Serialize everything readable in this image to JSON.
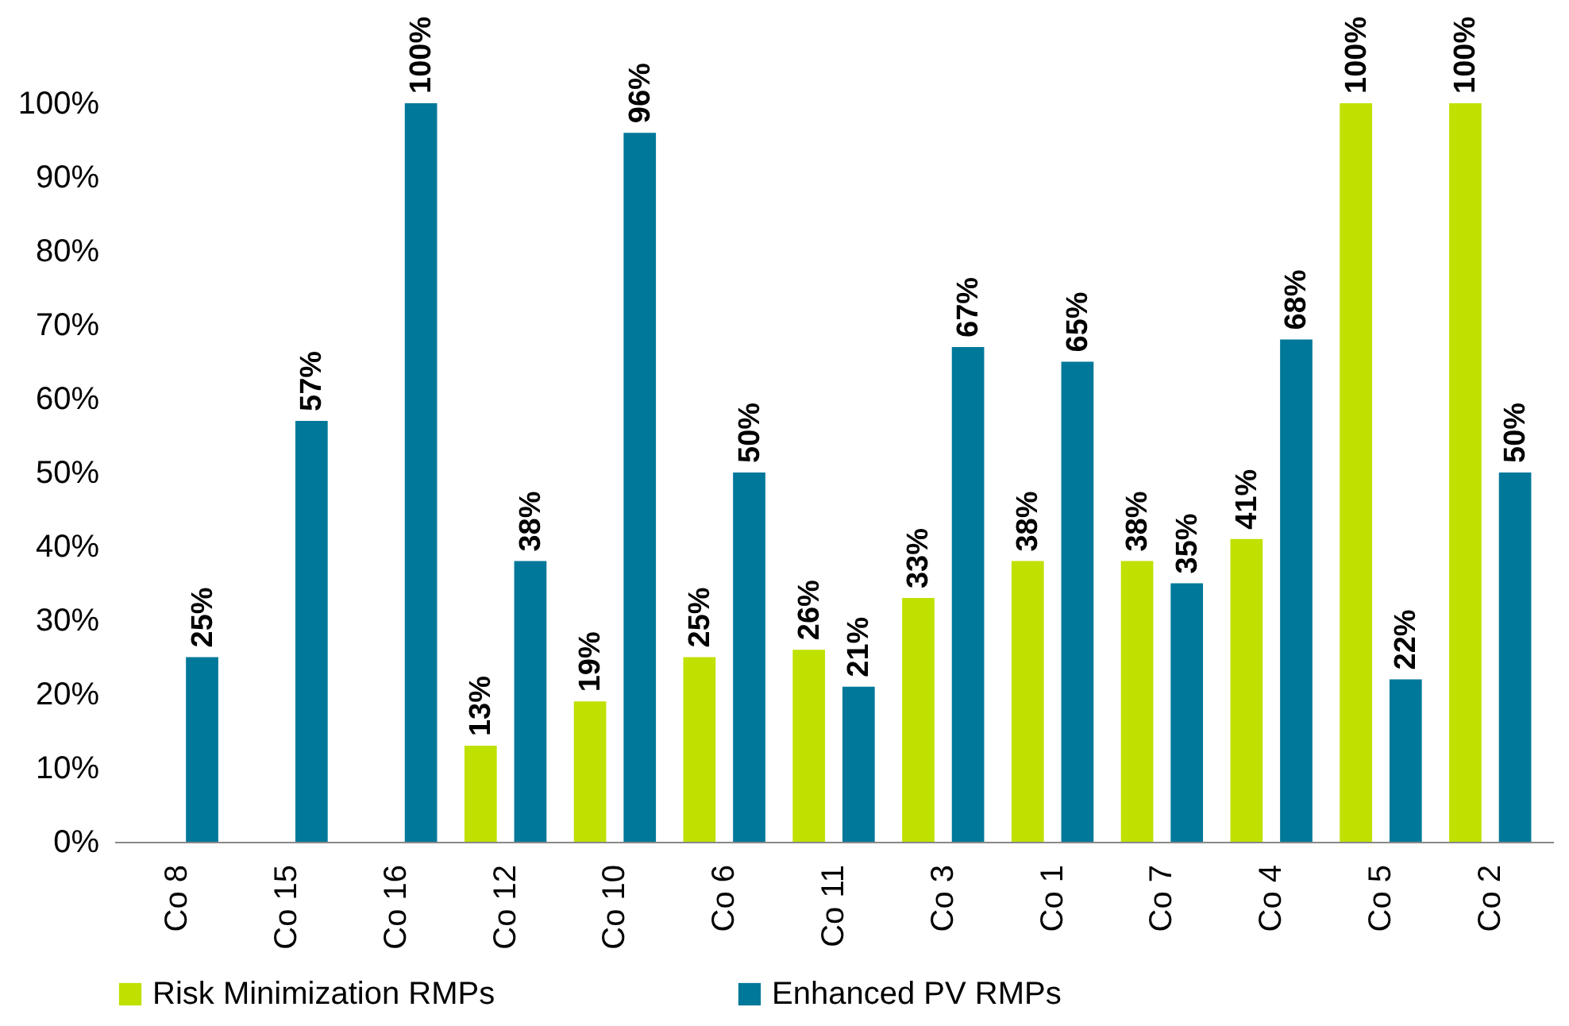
{
  "chart_data": {
    "type": "bar",
    "categories": [
      "Co 8",
      "Co 15",
      "Co 16",
      "Co 12",
      "Co 10",
      "Co 6",
      "Co 11",
      "Co 3",
      "Co 1",
      "Co 7",
      "Co 4",
      "Co 5",
      "Co 2"
    ],
    "series": [
      {
        "name": "Risk Minimization RMPs",
        "color": "#c0e000",
        "values": [
          null,
          null,
          null,
          13,
          19,
          25,
          26,
          33,
          38,
          38,
          41,
          100,
          100
        ],
        "value_labels": [
          null,
          null,
          null,
          "13%",
          "19%",
          "25%",
          "26%",
          "33%",
          "38%",
          "38%",
          "41%",
          "100%",
          "100%"
        ]
      },
      {
        "name": "Enhanced PV RMPs",
        "color": "#00789a",
        "values": [
          25,
          57,
          100,
          38,
          96,
          50,
          21,
          67,
          65,
          35,
          68,
          22,
          50
        ],
        "value_labels": [
          "25%",
          "57%",
          "100%",
          "38%",
          "96%",
          "50%",
          "21%",
          "67%",
          "65%",
          "35%",
          "68%",
          "22%",
          "50%"
        ]
      }
    ],
    "ylim": [
      0,
      100
    ],
    "yticks": [
      {
        "value": 0,
        "label": "0%"
      },
      {
        "value": 10,
        "label": "10%"
      },
      {
        "value": 20,
        "label": "20%"
      },
      {
        "value": 30,
        "label": "30%"
      },
      {
        "value": 40,
        "label": "40%"
      },
      {
        "value": 50,
        "label": "50%"
      },
      {
        "value": 60,
        "label": "60%"
      },
      {
        "value": 70,
        "label": "70%"
      },
      {
        "value": 80,
        "label": "80%"
      },
      {
        "value": 90,
        "label": "90%"
      },
      {
        "value": 100,
        "label": "100%"
      }
    ],
    "legend": "bottom",
    "grid": false
  }
}
